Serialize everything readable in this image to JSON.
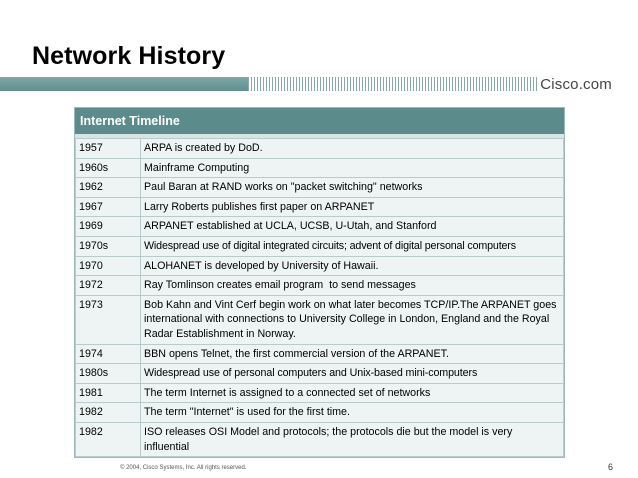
{
  "slide": {
    "title": "Network History",
    "brand": "Cisco.com",
    "footer": "© 2004, Cisco Systems, Inc. All rights reserved.",
    "page_number": "6"
  },
  "timeline": {
    "header": "Internet Timeline",
    "rows": [
      {
        "year": "1957",
        "event": "ARPA is created by DoD."
      },
      {
        "year": "1960s",
        "event": "Mainframe Computing"
      },
      {
        "year": "1962",
        "event": "Paul Baran at RAND works on \"packet switching\" networks"
      },
      {
        "year": "1967",
        "event": "Larry Roberts publishes first paper on ARPANET"
      },
      {
        "year": "1969",
        "event": "ARPANET established at UCLA, UCSB, U-Utah, and Stanford"
      },
      {
        "year": "1970s",
        "event": "Widespread use of digital integrated circuits; advent of digital personal computers"
      },
      {
        "year": "1970",
        "event": "ALOHANET is developed by University of Hawaii."
      },
      {
        "year": "1972",
        "event": "Ray Tomlinson creates email program  to send messages"
      },
      {
        "year": "1973",
        "event": "Bob Kahn and Vint Cerf begin work on what later becomes TCP/IP.The ARPANET goes international with connections to University College in London, England and the Royal Radar Establishment in Norway."
      },
      {
        "year": "1974",
        "event": "BBN opens Telnet, the first commercial version of the ARPANET."
      },
      {
        "year": "1980s",
        "event": "Widespread use of personal computers and Unix-based mini-computers"
      },
      {
        "year": "1981",
        "event": "The term Internet is assigned to a connected set of networks"
      },
      {
        "year": "1982",
        "event": "The term \"Internet\" is used for the first time."
      },
      {
        "year": "1982",
        "event": "ISO releases OSI Model and protocols; the protocols die but the model is very influential"
      }
    ]
  }
}
